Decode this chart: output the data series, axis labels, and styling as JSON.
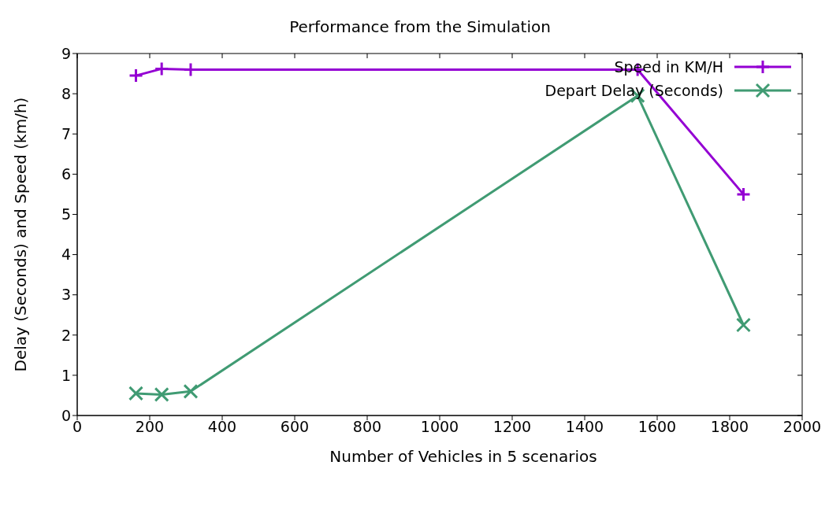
{
  "chart_data": {
    "type": "line",
    "title": "Performance from the Simulation",
    "xlabel": "Number of Vehicles in 5 scenarios",
    "ylabel": "Delay (Seconds) and Speed (km/h)",
    "series": [
      {
        "name": "Speed in KM/H",
        "color": "#9400d3",
        "marker": "plus",
        "x": [
          162,
          233,
          313,
          1546,
          1838
        ],
        "values": [
          8.45,
          8.62,
          8.6,
          8.6,
          5.5
        ]
      },
      {
        "name": "Depart Delay (Seconds)",
        "color": "#409b73",
        "marker": "cross",
        "x": [
          162,
          233,
          313,
          1546,
          1838
        ],
        "values": [
          0.55,
          0.52,
          0.6,
          7.95,
          2.25
        ]
      }
    ],
    "xlim": [
      0,
      2000
    ],
    "xticks": [
      0,
      200,
      400,
      600,
      800,
      1000,
      1200,
      1400,
      1600,
      1800,
      2000
    ],
    "ylim": [
      0,
      9
    ],
    "yticks": [
      0,
      1,
      2,
      3,
      4,
      5,
      6,
      7,
      8,
      9
    ],
    "grid": false,
    "legend": "top right",
    "line_style": "solid"
  }
}
